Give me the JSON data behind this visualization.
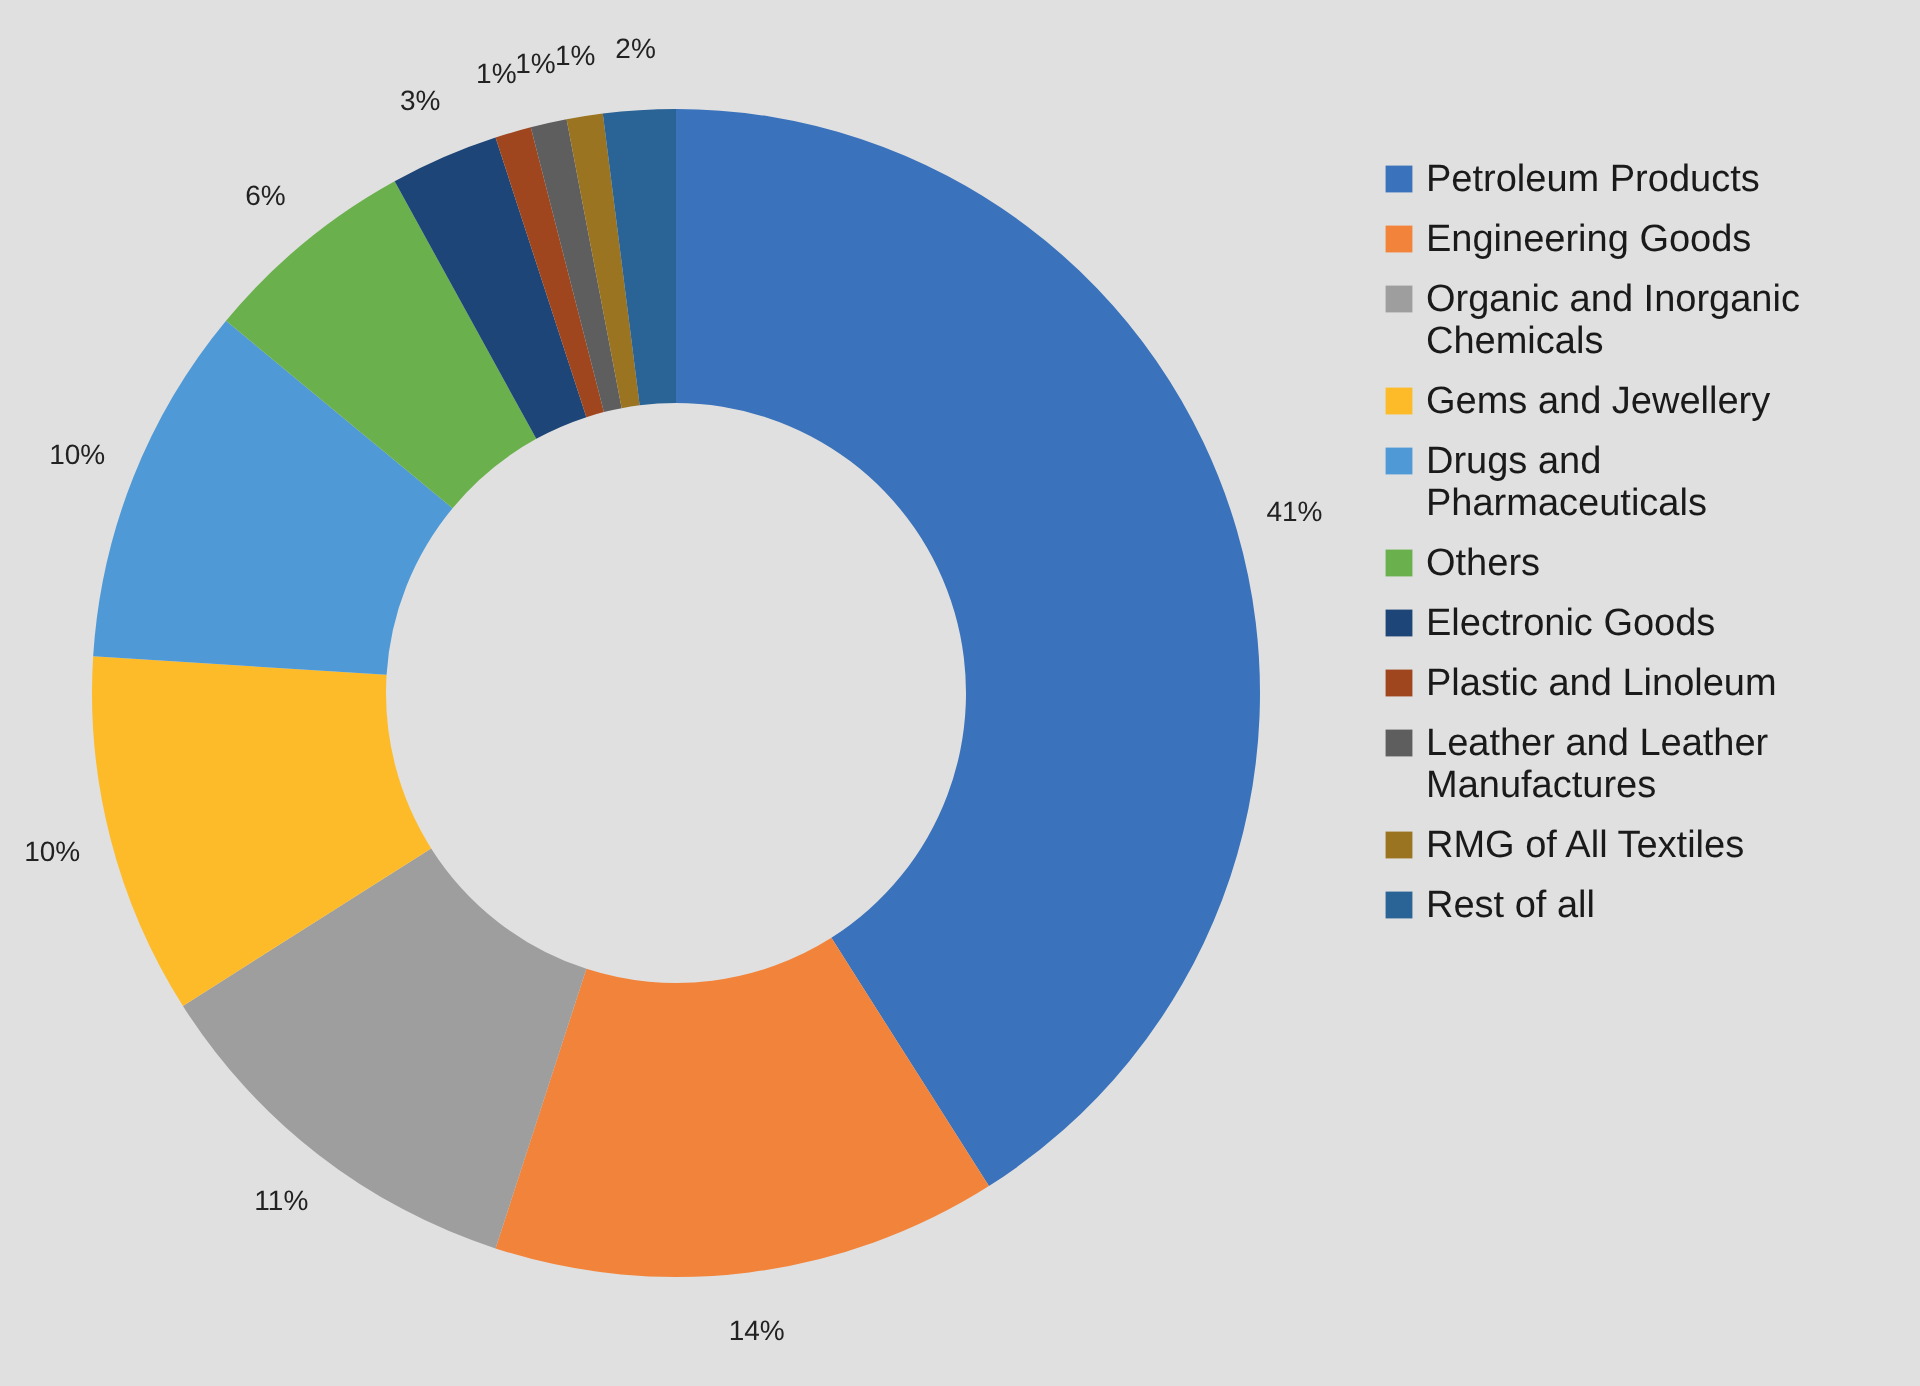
{
  "chart_data": {
    "type": "donut",
    "categories": [
      "Petroleum Products",
      "Engineering Goods",
      "Organic and Inorganic Chemicals",
      "Gems and Jewellery",
      "Drugs and Pharmaceuticals",
      "Others",
      "Electronic Goods",
      "Plastic and Linoleum",
      "Leather and Leather Manufactures",
      "RMG of All Textiles",
      "Rest of all"
    ],
    "values": [
      41,
      14,
      11,
      10,
      10,
      6,
      3,
      1,
      1,
      1,
      2
    ],
    "value_labels": [
      "41%",
      "14%",
      "11%",
      "10%",
      "10%",
      "6%",
      "3%",
      "1%",
      "1%",
      "1%",
      "2%"
    ],
    "colors": [
      "#3a72bb",
      "#f2833a",
      "#9e9e9e",
      "#fdbb2a",
      "#4f9ad6",
      "#6ab04c",
      "#1d4577",
      "#a0461e",
      "#5e5e5e",
      "#9a7420",
      "#2a6396"
    ],
    "legend": "right"
  }
}
